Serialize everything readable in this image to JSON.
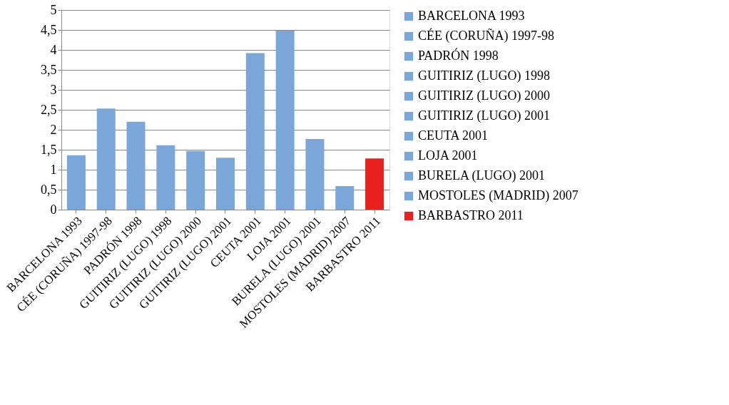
{
  "chart_data": {
    "type": "bar",
    "categories": [
      "BARCELONA 1993",
      "CÉE (CORUÑA) 1997-98",
      "PADRÓN 1998",
      "GUITIRIZ (LUGO) 1998",
      "GUITIRIZ (LUGO) 2000",
      "GUITIRIZ (LUGO) 2001",
      "CEUTA 2001",
      "LOJA 2001",
      "BURELA (LUGO) 2001",
      "MOSTOLES (MADRID) 2007",
      "BARBASTRO 2011"
    ],
    "series": [
      {
        "name": "BARCELONA 1993",
        "color": "#7aa6d9",
        "values": [
          1.36,
          null,
          null,
          null,
          null,
          null,
          null,
          null,
          null,
          null,
          null
        ]
      },
      {
        "name": "CÉE (CORUÑA) 1997-98",
        "color": "#7aa6d9",
        "values": [
          null,
          2.53,
          null,
          null,
          null,
          null,
          null,
          null,
          null,
          null,
          null
        ]
      },
      {
        "name": "PADRÓN 1998",
        "color": "#7aa6d9",
        "values": [
          null,
          null,
          2.2,
          null,
          null,
          null,
          null,
          null,
          null,
          null,
          null
        ]
      },
      {
        "name": "GUITIRIZ (LUGO) 1998",
        "color": "#7aa6d9",
        "values": [
          null,
          null,
          null,
          1.61,
          null,
          null,
          null,
          null,
          null,
          null,
          null
        ]
      },
      {
        "name": "GUITIRIZ (LUGO) 2000",
        "color": "#7aa6d9",
        "values": [
          null,
          null,
          null,
          null,
          1.47,
          null,
          null,
          null,
          null,
          null,
          null
        ]
      },
      {
        "name": "GUITIRIZ (LUGO) 2001",
        "color": "#7aa6d9",
        "values": [
          null,
          null,
          null,
          null,
          null,
          1.3,
          null,
          null,
          null,
          null,
          null
        ]
      },
      {
        "name": "CEUTA 2001",
        "color": "#7aa6d9",
        "values": [
          null,
          null,
          null,
          null,
          null,
          null,
          3.92,
          null,
          null,
          null,
          null
        ]
      },
      {
        "name": "LOJA 2001",
        "color": "#7aa6d9",
        "values": [
          null,
          null,
          null,
          null,
          null,
          null,
          null,
          4.48,
          null,
          null,
          null
        ]
      },
      {
        "name": "BURELA (LUGO) 2001",
        "color": "#7aa6d9",
        "values": [
          null,
          null,
          null,
          null,
          null,
          null,
          null,
          null,
          1.77,
          null,
          null
        ]
      },
      {
        "name": "MOSTOLES (MADRID) 2007",
        "color": "#7aa6d9",
        "values": [
          null,
          null,
          null,
          null,
          null,
          null,
          null,
          null,
          null,
          0.59,
          null
        ]
      },
      {
        "name": "BARBASTRO 2011",
        "color": "#e8201e",
        "values": [
          null,
          null,
          null,
          null,
          null,
          null,
          null,
          null,
          null,
          null,
          1.28
        ]
      }
    ],
    "ylim": [
      0,
      5
    ],
    "yticks": [
      0,
      {
        "value": 0.5,
        "label": "0,5"
      },
      1,
      {
        "value": 1.5,
        "label": "1,5"
      },
      2,
      {
        "value": 2.5,
        "label": "2,5"
      },
      3,
      {
        "value": 3.5,
        "label": "3,5"
      },
      4,
      {
        "value": 4.5,
        "label": "4,5"
      },
      5
    ],
    "grid": "y",
    "legend": "right"
  }
}
